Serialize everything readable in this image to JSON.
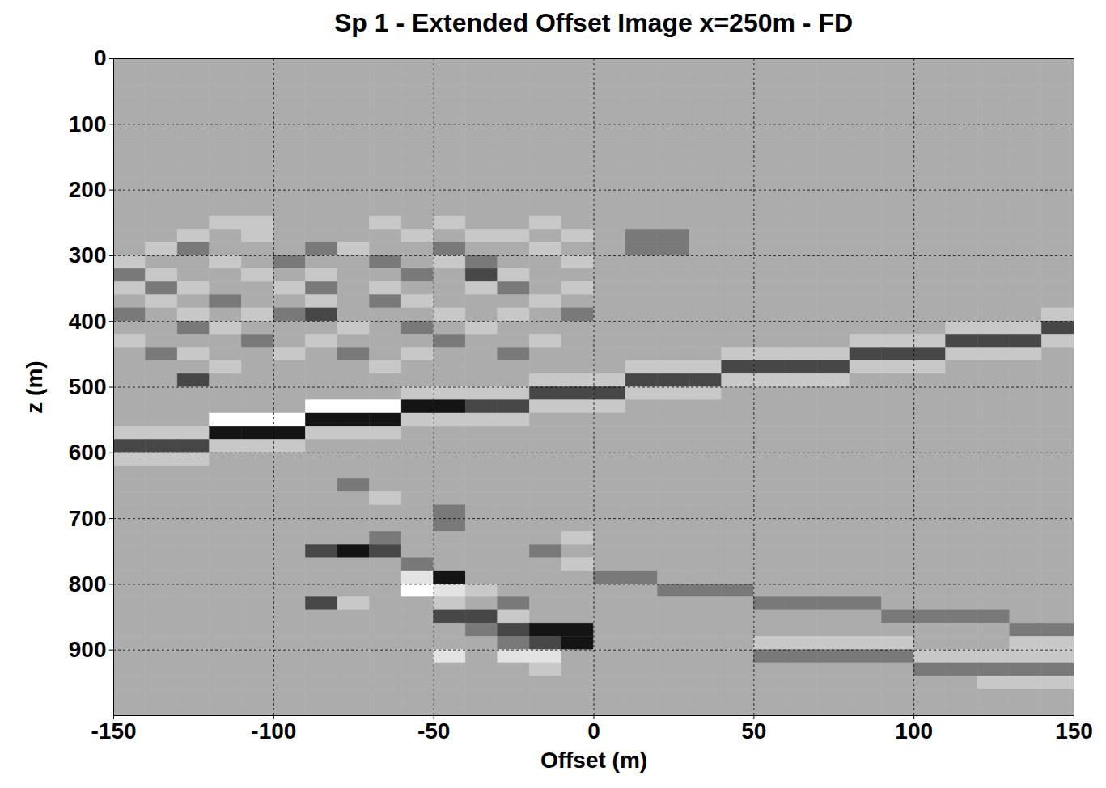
{
  "chart_data": {
    "type": "heatmap",
    "title": "Sp 1 - Extended Offset Image x=250m - FD",
    "xlabel": "Offset (m)",
    "ylabel": "z (m)",
    "xlim": [
      -150,
      150
    ],
    "ylim": [
      0,
      1000
    ],
    "xticks": [
      -150,
      -100,
      -50,
      0,
      50,
      100,
      150
    ],
    "yticks": [
      0,
      100,
      200,
      300,
      400,
      500,
      600,
      700,
      800,
      900
    ],
    "grid": true,
    "color": "gray",
    "value_range": [
      -3,
      3
    ],
    "x_edges": [
      -150,
      -140,
      -130,
      -120,
      -110,
      -100,
      -90,
      -80,
      -70,
      -60,
      -50,
      -40,
      -30,
      -20,
      -10,
      0,
      10,
      20,
      30,
      40,
      50,
      60,
      70,
      80,
      90,
      100,
      110,
      120,
      130,
      140,
      150
    ],
    "y_edges": [
      0,
      20,
      40,
      60,
      80,
      100,
      120,
      140,
      160,
      180,
      200,
      220,
      240,
      260,
      280,
      300,
      320,
      340,
      360,
      380,
      400,
      420,
      440,
      460,
      480,
      500,
      520,
      540,
      560,
      580,
      600,
      620,
      640,
      660,
      680,
      700,
      720,
      740,
      760,
      780,
      800,
      820,
      840,
      860,
      880,
      900,
      920,
      940,
      960,
      980,
      1000
    ],
    "values": [
      [
        0,
        0,
        0,
        0,
        0,
        0,
        0,
        0,
        0,
        0,
        0,
        0,
        0,
        0,
        0,
        0,
        0,
        0,
        0,
        0,
        0,
        0,
        0,
        0,
        0,
        0,
        0,
        0,
        0,
        0
      ],
      [
        0,
        0,
        0,
        0,
        0,
        0,
        0,
        0,
        0,
        0,
        0,
        0,
        0,
        0,
        0,
        0,
        0,
        0,
        0,
        0,
        0,
        0,
        0,
        0,
        0,
        0,
        0,
        0,
        0,
        0
      ],
      [
        0,
        0,
        0,
        0,
        0,
        0,
        0,
        0,
        0,
        0,
        0,
        0,
        0,
        0,
        0,
        0,
        0,
        0,
        0,
        0,
        0,
        0,
        0,
        0,
        0,
        0,
        0,
        0,
        0,
        0
      ],
      [
        0,
        0,
        0,
        0,
        0,
        0,
        0,
        0,
        0,
        0,
        0,
        0,
        0,
        0,
        0,
        0,
        0,
        0,
        0,
        0,
        0,
        0,
        0,
        0,
        0,
        0,
        0,
        0,
        0,
        0
      ],
      [
        0,
        0,
        0,
        0,
        0,
        0,
        0,
        0,
        0,
        0,
        0,
        0,
        0,
        0,
        0,
        0,
        0,
        0,
        0,
        0,
        0,
        0,
        0,
        0,
        0,
        0,
        0,
        0,
        0,
        0
      ],
      [
        0,
        0,
        0,
        0,
        0,
        0,
        0,
        0,
        0,
        0,
        0,
        0,
        0,
        0,
        0,
        0,
        0,
        0,
        0,
        0,
        0,
        0,
        0,
        0,
        0,
        0,
        0,
        0,
        0,
        0
      ],
      [
        0,
        0,
        0,
        0,
        0,
        0,
        0,
        0,
        0,
        0,
        0,
        0,
        0,
        0,
        0,
        0,
        0,
        0,
        0,
        0,
        0,
        0,
        0,
        0,
        0,
        0,
        0,
        0,
        0,
        0
      ],
      [
        0,
        0,
        0,
        0,
        0,
        0,
        0,
        0,
        0,
        0,
        0,
        0,
        0,
        0,
        0,
        0,
        0,
        0,
        0,
        0,
        0,
        0,
        0,
        0,
        0,
        0,
        0,
        0,
        0,
        0
      ],
      [
        0,
        0,
        0,
        0,
        0,
        0,
        0,
        0,
        0,
        0,
        0,
        0,
        0,
        0,
        0,
        0,
        0,
        0,
        0,
        0,
        0,
        0,
        0,
        0,
        0,
        0,
        0,
        0,
        0,
        0
      ],
      [
        0,
        0,
        0,
        0,
        0,
        0,
        0,
        0,
        0,
        0,
        0,
        0,
        0,
        0,
        0,
        0,
        0,
        0,
        0,
        0,
        0,
        0,
        0,
        0,
        0,
        0,
        0,
        0,
        0,
        0
      ],
      [
        0,
        0,
        0,
        0,
        0,
        0,
        0,
        0,
        0,
        0,
        0,
        0,
        0,
        0,
        0,
        0,
        0,
        0,
        0,
        0,
        0,
        0,
        0,
        0,
        0,
        0,
        0,
        0,
        0,
        0
      ],
      [
        0,
        0,
        0,
        0,
        0,
        0,
        0,
        0,
        0,
        0,
        0,
        0,
        0,
        0,
        0,
        0,
        0,
        0,
        0,
        0,
        0,
        0,
        0,
        0,
        0,
        0,
        0,
        0,
        0,
        0
      ],
      [
        0,
        0,
        0,
        1,
        1,
        0,
        0,
        0,
        1,
        0,
        1,
        0,
        0,
        1,
        0,
        0,
        0,
        0,
        0,
        0,
        0,
        0,
        0,
        0,
        0,
        0,
        0,
        0,
        0,
        0
      ],
      [
        0,
        0,
        1,
        0,
        1,
        0,
        0,
        0,
        0,
        1,
        0,
        1,
        1,
        0,
        1,
        0,
        -1,
        -1,
        0,
        0,
        0,
        0,
        0,
        0,
        0,
        0,
        0,
        0,
        0,
        0
      ],
      [
        0,
        1,
        -1,
        0,
        0,
        0,
        -1,
        1,
        0,
        0,
        -1,
        0,
        0,
        1,
        0,
        0,
        -1,
        -1,
        0,
        0,
        0,
        0,
        0,
        0,
        0,
        0,
        0,
        0,
        0,
        0
      ],
      [
        1,
        0,
        0,
        1,
        0,
        -1,
        0,
        0,
        -1,
        0,
        1,
        -1,
        0,
        0,
        1,
        0,
        0,
        0,
        0,
        0,
        0,
        0,
        0,
        0,
        0,
        0,
        0,
        0,
        0,
        0
      ],
      [
        -1,
        1,
        0,
        0,
        1,
        0,
        1,
        0,
        0,
        -1,
        0,
        -2,
        1,
        0,
        0,
        0,
        0,
        0,
        0,
        0,
        0,
        0,
        0,
        0,
        0,
        0,
        0,
        0,
        0,
        0
      ],
      [
        1,
        -1,
        1,
        0,
        0,
        1,
        -1,
        0,
        1,
        0,
        0,
        1,
        -1,
        0,
        1,
        0,
        0,
        0,
        0,
        0,
        0,
        0,
        0,
        0,
        0,
        0,
        0,
        0,
        0,
        0
      ],
      [
        0,
        1,
        0,
        -1,
        0,
        0,
        1,
        0,
        -1,
        1,
        0,
        0,
        0,
        1,
        0,
        0,
        0,
        0,
        0,
        0,
        0,
        0,
        0,
        0,
        0,
        0,
        0,
        0,
        0,
        0
      ],
      [
        -1,
        0,
        1,
        0,
        1,
        -1,
        -2,
        0,
        0,
        0,
        1,
        0,
        1,
        0,
        -1,
        0,
        0,
        0,
        0,
        0,
        0,
        0,
        0,
        0,
        0,
        0,
        0,
        0,
        0,
        1
      ],
      [
        0,
        0,
        -1,
        1,
        0,
        0,
        0,
        1,
        0,
        -1,
        0,
        1,
        0,
        0,
        0,
        0,
        0,
        0,
        0,
        0,
        0,
        0,
        0,
        0,
        0,
        0,
        1,
        1,
        1,
        -2
      ],
      [
        1,
        0,
        0,
        0,
        -1,
        0,
        1,
        0,
        0,
        0,
        -1,
        0,
        0,
        1,
        0,
        0,
        0,
        0,
        0,
        0,
        0,
        0,
        0,
        1,
        1,
        1,
        -2,
        -2,
        -2,
        1
      ],
      [
        0,
        -1,
        1,
        0,
        0,
        1,
        0,
        -1,
        0,
        1,
        0,
        0,
        -1,
        0,
        0,
        0,
        0,
        0,
        0,
        1,
        1,
        1,
        1,
        -2,
        -2,
        -2,
        1,
        1,
        1,
        0
      ],
      [
        0,
        0,
        0,
        1,
        0,
        0,
        0,
        0,
        1,
        0,
        0,
        0,
        0,
        0,
        0,
        0,
        1,
        1,
        1,
        -2,
        -2,
        -2,
        -2,
        1,
        1,
        1,
        0,
        0,
        0,
        0
      ],
      [
        0,
        0,
        -2,
        0,
        0,
        0,
        0,
        0,
        0,
        0,
        0,
        0,
        0,
        1,
        1,
        1,
        -2,
        -2,
        -2,
        1,
        1,
        1,
        1,
        0,
        0,
        0,
        0,
        0,
        0,
        0
      ],
      [
        0,
        0,
        0,
        0,
        0,
        0,
        0,
        0,
        0,
        1,
        1,
        1,
        1,
        -2,
        -2,
        -2,
        1,
        1,
        1,
        0,
        0,
        0,
        0,
        0,
        0,
        0,
        0,
        0,
        0,
        0
      ],
      [
        0,
        0,
        0,
        0,
        0,
        0,
        3,
        3,
        3,
        -3,
        -3,
        -2,
        -2,
        1,
        1,
        1,
        0,
        0,
        0,
        0,
        0,
        0,
        0,
        0,
        0,
        0,
        0,
        0,
        0,
        0
      ],
      [
        0,
        0,
        0,
        3,
        3,
        3,
        -3,
        -3,
        -3,
        1,
        1,
        1,
        1,
        0,
        0,
        0,
        0,
        0,
        0,
        0,
        0,
        0,
        0,
        0,
        0,
        0,
        0,
        0,
        0,
        0
      ],
      [
        1,
        1,
        1,
        -3,
        -3,
        -3,
        1,
        1,
        1,
        0,
        0,
        0,
        0,
        0,
        0,
        0,
        0,
        0,
        0,
        0,
        0,
        0,
        0,
        0,
        0,
        0,
        0,
        0,
        0,
        0
      ],
      [
        -2,
        -2,
        -2,
        1,
        1,
        1,
        0,
        0,
        0,
        0,
        0,
        0,
        0,
        0,
        0,
        0,
        0,
        0,
        0,
        0,
        0,
        0,
        0,
        0,
        0,
        0,
        0,
        0,
        0,
        0
      ],
      [
        1,
        1,
        1,
        0,
        0,
        0,
        0,
        0,
        0,
        0,
        0,
        0,
        0,
        0,
        0,
        0,
        0,
        0,
        0,
        0,
        0,
        0,
        0,
        0,
        0,
        0,
        0,
        0,
        0,
        0
      ],
      [
        0,
        0,
        0,
        0,
        0,
        0,
        0,
        0,
        0,
        0,
        0,
        0,
        0,
        0,
        0,
        0,
        0,
        0,
        0,
        0,
        0,
        0,
        0,
        0,
        0,
        0,
        0,
        0,
        0,
        0
      ],
      [
        0,
        0,
        0,
        0,
        0,
        0,
        0,
        -1,
        0,
        0,
        0,
        0,
        0,
        0,
        0,
        0,
        0,
        0,
        0,
        0,
        0,
        0,
        0,
        0,
        0,
        0,
        0,
        0,
        0,
        0
      ],
      [
        0,
        0,
        0,
        0,
        0,
        0,
        0,
        0,
        1,
        0,
        0,
        0,
        0,
        0,
        0,
        0,
        0,
        0,
        0,
        0,
        0,
        0,
        0,
        0,
        0,
        0,
        0,
        0,
        0,
        0
      ],
      [
        0,
        0,
        0,
        0,
        0,
        0,
        0,
        0,
        0,
        0,
        -1,
        0,
        0,
        0,
        0,
        0,
        0,
        0,
        0,
        0,
        0,
        0,
        0,
        0,
        0,
        0,
        0,
        0,
        0,
        0
      ],
      [
        0,
        0,
        0,
        0,
        0,
        0,
        0,
        0,
        0,
        0,
        -1,
        0,
        0,
        0,
        0,
        0,
        0,
        0,
        0,
        0,
        0,
        0,
        0,
        0,
        0,
        0,
        0,
        0,
        0,
        0
      ],
      [
        0,
        0,
        0,
        0,
        0,
        0,
        0,
        0,
        -1,
        0,
        0,
        0,
        0,
        0,
        1,
        0,
        0,
        0,
        0,
        0,
        0,
        0,
        0,
        0,
        0,
        0,
        0,
        0,
        0,
        0
      ],
      [
        0,
        0,
        0,
        0,
        0,
        0,
        -2,
        -3,
        -2,
        0,
        0,
        0,
        0,
        -1,
        0,
        0,
        0,
        0,
        0,
        0,
        0,
        0,
        0,
        0,
        0,
        0,
        0,
        0,
        0,
        0
      ],
      [
        0,
        0,
        0,
        0,
        0,
        0,
        0,
        0,
        0,
        -1,
        0,
        0,
        0,
        0,
        1,
        0,
        0,
        0,
        0,
        0,
        0,
        0,
        0,
        0,
        0,
        0,
        0,
        0,
        0,
        0
      ],
      [
        0,
        0,
        0,
        0,
        0,
        0,
        0,
        0,
        0,
        2,
        -3,
        0,
        0,
        0,
        0,
        -1,
        -1,
        0,
        0,
        0,
        0,
        0,
        0,
        0,
        0,
        0,
        0,
        0,
        0,
        0
      ],
      [
        0,
        0,
        0,
        0,
        0,
        0,
        0,
        0,
        0,
        3,
        2,
        1,
        0,
        0,
        0,
        0,
        0,
        -1,
        -1,
        -1,
        0,
        0,
        0,
        0,
        0,
        0,
        0,
        0,
        0,
        0
      ],
      [
        0,
        0,
        0,
        0,
        0,
        0,
        -2,
        1,
        0,
        0,
        1,
        0,
        -1,
        0,
        0,
        0,
        0,
        0,
        0,
        0,
        -1,
        -1,
        -1,
        -1,
        0,
        0,
        0,
        0,
        0,
        0
      ],
      [
        0,
        0,
        0,
        0,
        0,
        0,
        0,
        0,
        0,
        0,
        -2,
        -2,
        1,
        0,
        0,
        0,
        0,
        0,
        0,
        0,
        0,
        0,
        0,
        0,
        -1,
        -1,
        -1,
        -1,
        0,
        0
      ],
      [
        0,
        0,
        0,
        0,
        0,
        0,
        0,
        0,
        0,
        0,
        0,
        -1,
        -2,
        -3,
        -3,
        0,
        0,
        0,
        0,
        0,
        0,
        0,
        0,
        0,
        0,
        0,
        0,
        0,
        -1,
        -1
      ],
      [
        0,
        0,
        0,
        0,
        0,
        0,
        0,
        0,
        0,
        0,
        0,
        0,
        -1,
        -2,
        -3,
        0,
        0,
        0,
        0,
        0,
        1,
        1,
        1,
        1,
        1,
        0,
        0,
        0,
        1,
        1
      ],
      [
        0,
        0,
        0,
        0,
        0,
        0,
        0,
        0,
        0,
        0,
        2,
        0,
        2,
        2,
        0,
        0,
        0,
        0,
        0,
        0,
        -1,
        -1,
        -1,
        -1,
        -1,
        1,
        1,
        1,
        1,
        1
      ],
      [
        0,
        0,
        0,
        0,
        0,
        0,
        0,
        0,
        0,
        0,
        0,
        0,
        0,
        1,
        0,
        0,
        0,
        0,
        0,
        0,
        0,
        0,
        0,
        0,
        0,
        -1,
        -1,
        -1,
        -1,
        -1
      ],
      [
        0,
        0,
        0,
        0,
        0,
        0,
        0,
        0,
        0,
        0,
        0,
        0,
        0,
        0,
        0,
        0,
        0,
        0,
        0,
        0,
        0,
        0,
        0,
        0,
        0,
        0,
        0,
        1,
        1,
        1
      ],
      [
        0,
        0,
        0,
        0,
        0,
        0,
        0,
        0,
        0,
        0,
        0,
        0,
        0,
        0,
        0,
        0,
        0,
        0,
        0,
        0,
        0,
        0,
        0,
        0,
        0,
        0,
        0,
        0,
        0,
        0
      ],
      [
        0,
        0,
        0,
        0,
        0,
        0,
        0,
        0,
        0,
        0,
        0,
        0,
        0,
        0,
        0,
        0,
        0,
        0,
        0,
        0,
        0,
        0,
        0,
        0,
        0,
        0,
        0,
        0,
        0,
        0
      ]
    ]
  }
}
